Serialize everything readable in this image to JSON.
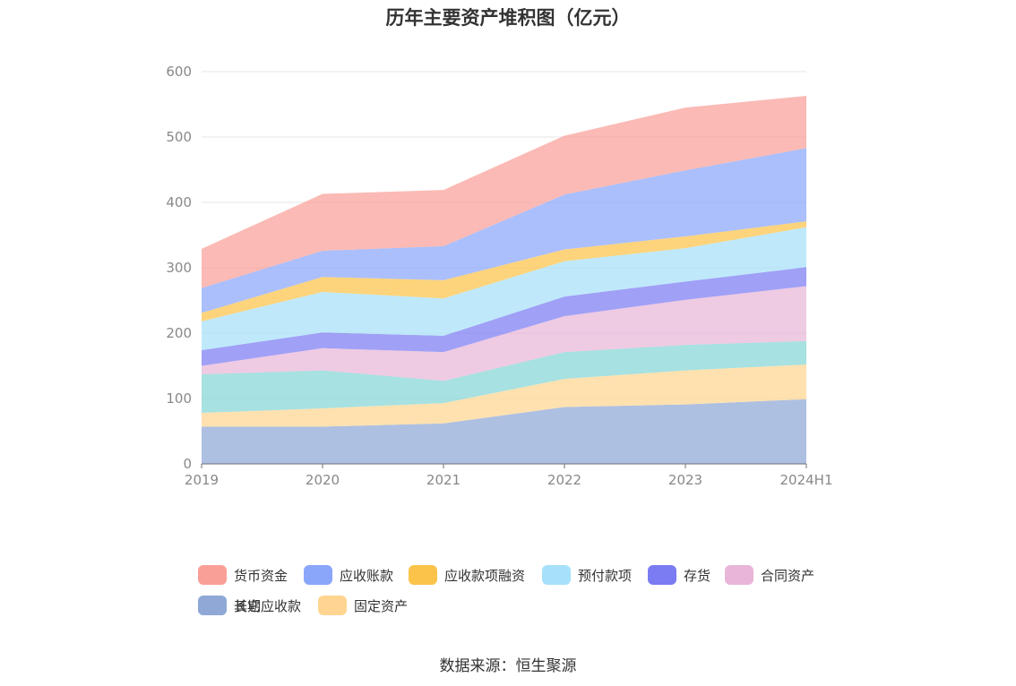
{
  "chart_data": {
    "type": "area",
    "stacked": true,
    "title": "历年主要资产堆积图（亿元）",
    "categories": [
      "2019",
      "2020",
      "2021",
      "2022",
      "2023",
      "2024H1"
    ],
    "yticks": [
      0,
      100,
      200,
      300,
      400,
      500,
      600
    ],
    "ylim": [
      0,
      600
    ],
    "grid": true,
    "legend_position": "bottom",
    "series": [
      {
        "name": "其它",
        "color": "#8fa8d6",
        "values": [
          57,
          57,
          62,
          87,
          91,
          99
        ]
      },
      {
        "name": "固定资产",
        "color": "#ffd591",
        "values": [
          21,
          28,
          31,
          43,
          52,
          53
        ]
      },
      {
        "name": "长期应收款",
        "color": "#85d6d6",
        "values": [
          59,
          58,
          34,
          41,
          39,
          36
        ]
      },
      {
        "name": "合同资产",
        "color": "#e8b6d8",
        "values": [
          13,
          34,
          44,
          55,
          69,
          84
        ]
      },
      {
        "name": "存货",
        "color": "#7b7cf2",
        "values": [
          24,
          24,
          25,
          30,
          28,
          29
        ]
      },
      {
        "name": "预付款项",
        "color": "#a6e1f9",
        "values": [
          44,
          62,
          57,
          54,
          51,
          61
        ]
      },
      {
        "name": "应收款项融资",
        "color": "#fcc34a",
        "values": [
          13,
          23,
          28,
          18,
          18,
          9
        ]
      },
      {
        "name": "应收账款",
        "color": "#8aa6fb",
        "values": [
          38,
          40,
          52,
          84,
          101,
          112
        ]
      },
      {
        "name": "货币资金",
        "color": "#fa9f98",
        "values": [
          60,
          87,
          86,
          90,
          96,
          80
        ]
      }
    ],
    "legend_order": [
      "货币资金",
      "应收账款",
      "应收款项融资",
      "预付款项",
      "存货",
      "合同资产",
      "长期应收款",
      "固定资产",
      "其它"
    ]
  },
  "source": "数据来源：恒生聚源"
}
